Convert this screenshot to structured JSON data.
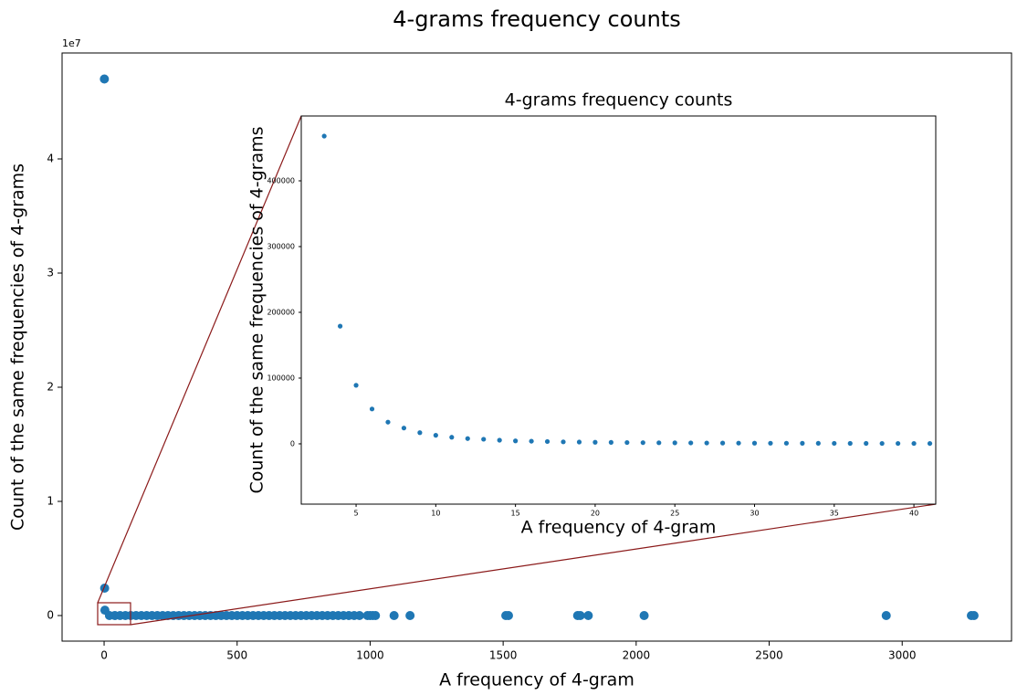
{
  "chart_data": [
    {
      "type": "scatter",
      "title": "4-grams frequency counts",
      "x_label": "A frequency of 4-gram",
      "y_label": "Count of the same frequencies of 4-grams",
      "y_offset_label": "1e7",
      "color": "#1f77b4",
      "x": [
        1,
        2,
        3,
        20,
        40,
        60,
        80,
        100,
        120,
        140,
        160,
        180,
        200,
        220,
        240,
        260,
        280,
        300,
        320,
        340,
        360,
        380,
        400,
        420,
        440,
        460,
        480,
        500,
        520,
        540,
        560,
        580,
        600,
        620,
        640,
        660,
        680,
        700,
        720,
        740,
        760,
        780,
        800,
        820,
        840,
        860,
        880,
        900,
        920,
        940,
        960,
        990,
        1000,
        1010,
        1020,
        1090,
        1150,
        1510,
        1520,
        1780,
        1790,
        1820,
        2030,
        2940,
        3260,
        3270
      ],
      "values": [
        4.7,
        0.24,
        0.047,
        0,
        0,
        0,
        0,
        0,
        0,
        0,
        0,
        0,
        0,
        0,
        0,
        0,
        0,
        0,
        0,
        0,
        0,
        0,
        0,
        0,
        0,
        0,
        0,
        0,
        0,
        0,
        0,
        0,
        0,
        0,
        0,
        0,
        0,
        0,
        0,
        0,
        0,
        0,
        0,
        0,
        0,
        0,
        0,
        0,
        0,
        0,
        0,
        0,
        0,
        0,
        0,
        0,
        0,
        0,
        0,
        0,
        0,
        0,
        0,
        0,
        0,
        0
      ],
      "xlim": [
        -158,
        3411
      ],
      "xticks": [
        0,
        500,
        1000,
        1500,
        2000,
        2500,
        3000
      ],
      "ylim": [
        -0.224,
        4.928
      ],
      "yticks": [
        0,
        1,
        2,
        3,
        4
      ]
    },
    {
      "type": "scatter",
      "title": "4-grams frequency counts",
      "x_label": "A frequency of 4-gram",
      "y_label": "Count of the same frequencies of 4-grams",
      "color": "#1f77b4",
      "x": [
        3,
        4,
        5,
        6,
        7,
        8,
        9,
        10,
        11,
        12,
        13,
        14,
        15,
        16,
        17,
        18,
        19,
        20,
        21,
        22,
        23,
        24,
        25,
        26,
        27,
        28,
        29,
        30,
        31,
        32,
        33,
        34,
        35,
        36,
        37,
        38,
        39,
        40,
        41
      ],
      "values": [
        468000,
        179000,
        89000,
        53000,
        33000,
        24000,
        17000,
        13000,
        10000,
        8000,
        7000,
        5500,
        4500,
        4000,
        3500,
        3000,
        2700,
        2400,
        2200,
        2000,
        1800,
        1600,
        1500,
        1400,
        1300,
        1200,
        1100,
        1000,
        950,
        900,
        850,
        800,
        750,
        700,
        650,
        600,
        580,
        560,
        540
      ],
      "xlim": [
        1.56,
        41.37
      ],
      "xticks": [
        5,
        10,
        15,
        20,
        25,
        30,
        35,
        40
      ],
      "ylim": [
        -91700,
        498600
      ],
      "yticks": [
        0,
        100000,
        200000,
        300000,
        400000
      ]
    }
  ]
}
